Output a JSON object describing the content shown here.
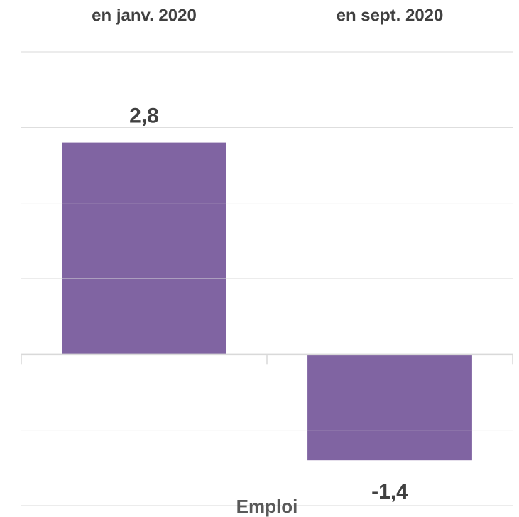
{
  "chart_data": {
    "type": "bar",
    "x_label": "Emploi",
    "categories": [
      "en janv. 2020",
      "en sept. 2020"
    ],
    "values": [
      2.8,
      -1.4
    ],
    "value_labels": [
      "2,8",
      "-1,4"
    ],
    "color": "#8064a2",
    "ylim": [
      -2,
      4
    ],
    "yticks": [
      -2,
      -1,
      0,
      1,
      2,
      3,
      4
    ],
    "grid": true
  }
}
